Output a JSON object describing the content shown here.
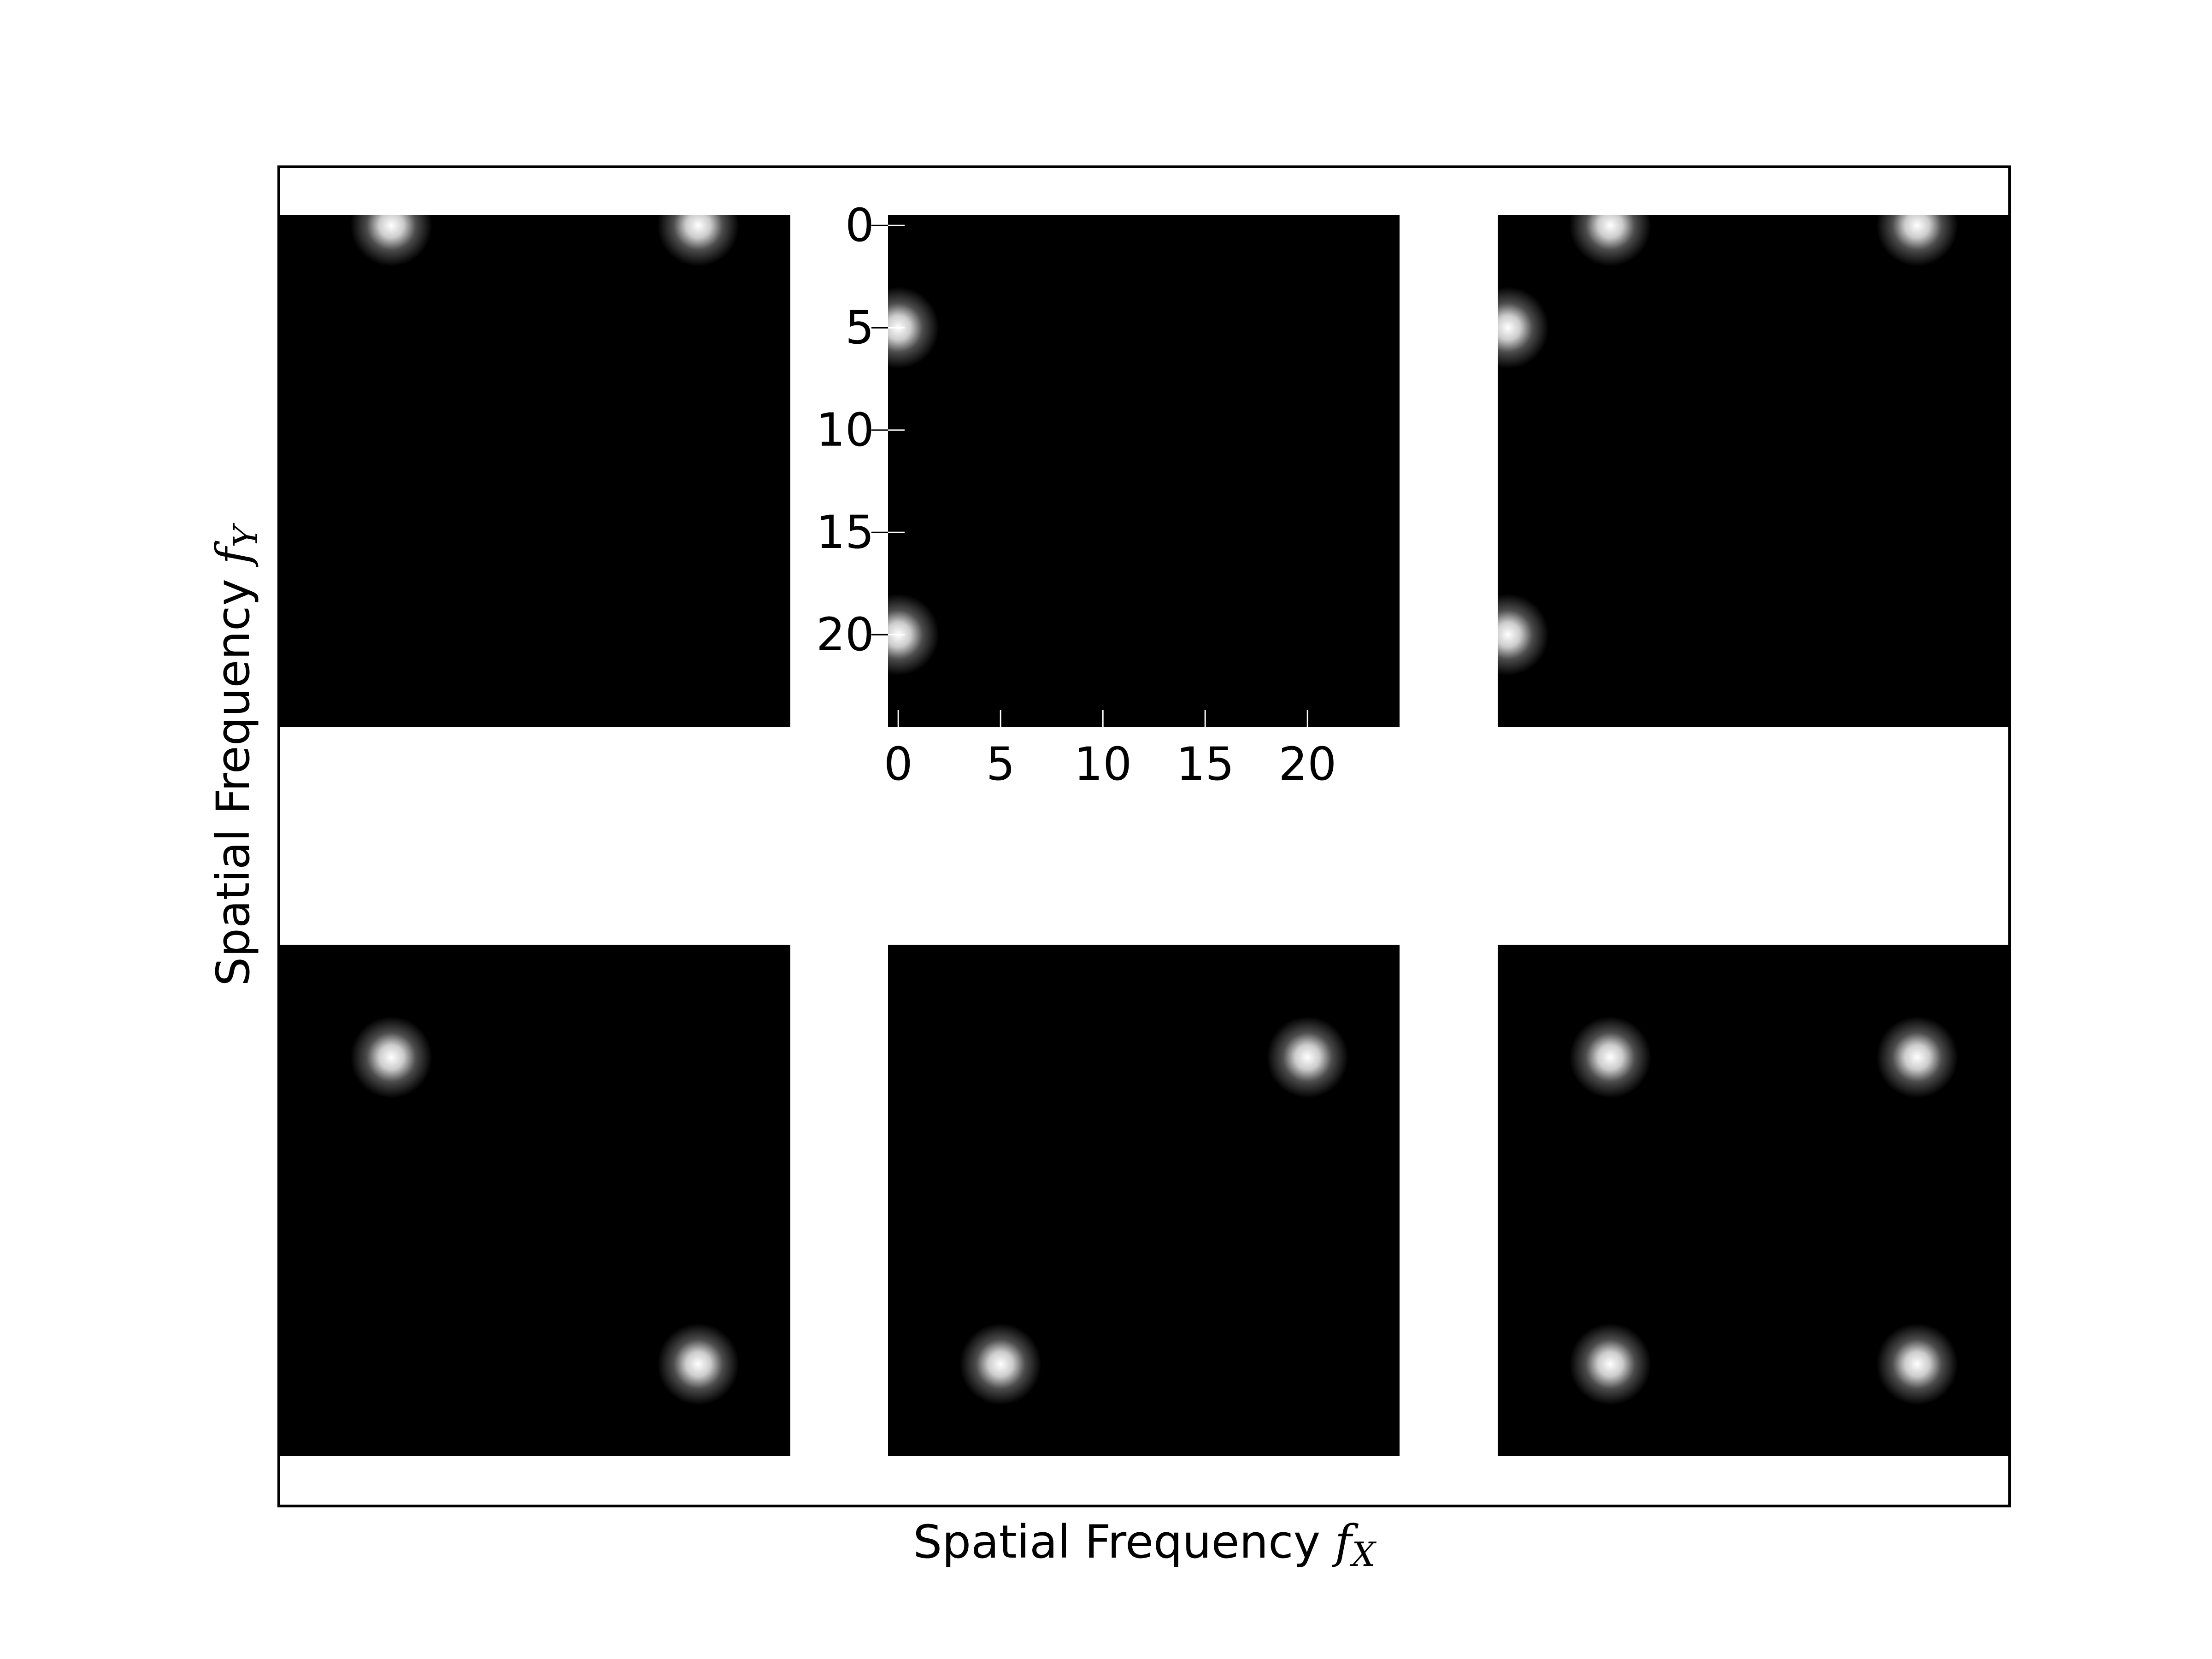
{
  "chart_data": {
    "type": "heatmap",
    "title": "",
    "xlabel": "Spatial Frequency",
    "xlabel_symbol": "f",
    "xlabel_subscript": "X",
    "ylabel": "Spatial Frequency",
    "ylabel_symbol": "f",
    "ylabel_subscript": "Y",
    "grid": false,
    "colormap": "gray",
    "background_color": "#000000",
    "spot_color": "#ffffff",
    "image_size": 25,
    "spot_sigma": 0.8,
    "tick_panel": 1,
    "xticks": [
      0,
      5,
      10,
      15,
      20
    ],
    "yticks": [
      0,
      5,
      10,
      15,
      20
    ],
    "xlim": [
      -0.5,
      24.5
    ],
    "ylim": [
      24.5,
      -0.5
    ],
    "panels": [
      {
        "row": 0,
        "col": 0,
        "peaks": [
          [
            5,
            0
          ],
          [
            20,
            0
          ]
        ]
      },
      {
        "row": 0,
        "col": 1,
        "peaks": [
          [
            0,
            5
          ],
          [
            0,
            20
          ]
        ]
      },
      {
        "row": 0,
        "col": 2,
        "peaks": [
          [
            5,
            0
          ],
          [
            20,
            0
          ],
          [
            0,
            5
          ],
          [
            0,
            20
          ]
        ]
      },
      {
        "row": 1,
        "col": 0,
        "peaks": [
          [
            5,
            5
          ],
          [
            20,
            20
          ]
        ]
      },
      {
        "row": 1,
        "col": 1,
        "peaks": [
          [
            20,
            5
          ],
          [
            5,
            20
          ]
        ]
      },
      {
        "row": 1,
        "col": 2,
        "peaks": [
          [
            5,
            5
          ],
          [
            20,
            5
          ],
          [
            5,
            20
          ],
          [
            20,
            20
          ]
        ]
      }
    ]
  }
}
